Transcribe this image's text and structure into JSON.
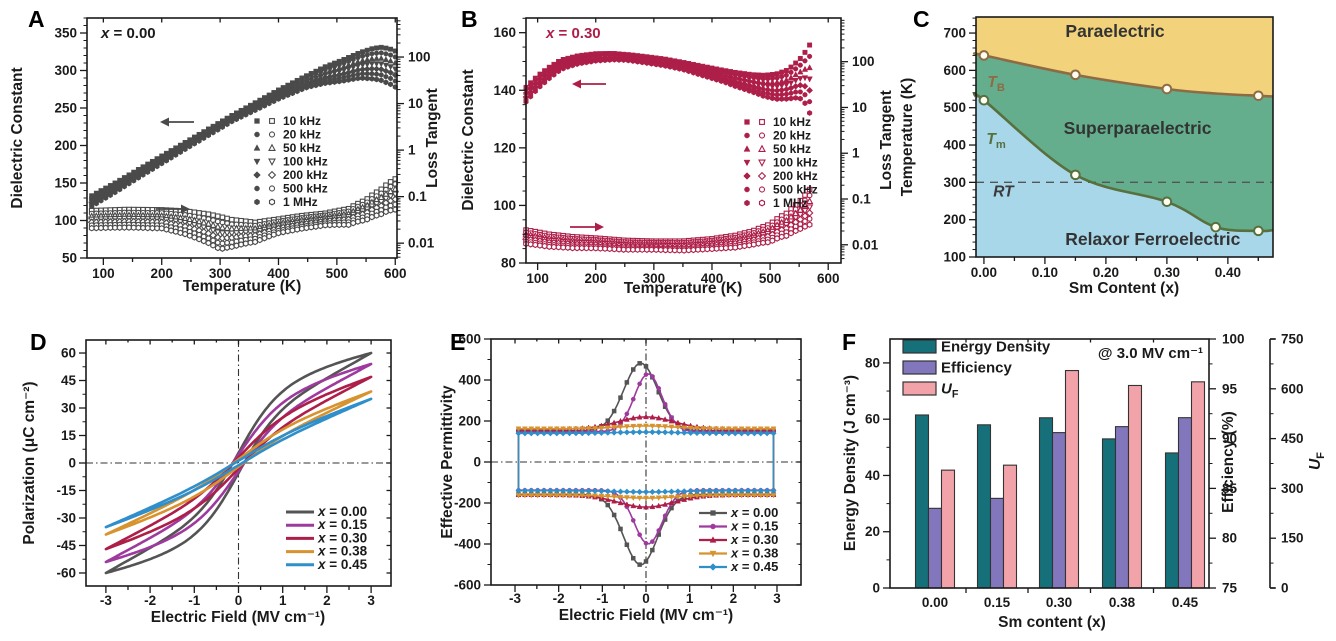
{
  "figure": {
    "panel_order": [
      "A",
      "B",
      "C",
      "D",
      "E",
      "F"
    ]
  },
  "chart_data": {
    "A": {
      "letter": "A",
      "type": "scatter",
      "title": "x = 0.00",
      "xlabel": "Temperature (K)",
      "ylabel_left": "Dielectric Constant",
      "ylabel_right": "Loss Tangent",
      "xlim": [
        72,
        603
      ],
      "xticks": [
        100,
        200,
        300,
        400,
        500,
        600
      ],
      "ylim_left": [
        50,
        370
      ],
      "yticks_left": [
        50,
        100,
        150,
        200,
        250,
        300,
        350
      ],
      "ylim_right_log": [
        0.0048,
        690
      ],
      "yticks_right": [
        0.01,
        0.1,
        1,
        10,
        100
      ],
      "temperature_range": [
        80,
        600
      ],
      "legend": [
        "10 kHz",
        "20 kHz",
        "50 kHz",
        "100 kHz",
        "200 kHz",
        "500 kHz",
        "1 MHz"
      ],
      "markers": [
        "square",
        "circle",
        "triangle-up",
        "triangle-down",
        "diamond",
        "circle",
        "hexagon"
      ],
      "color": "#4a4a4a",
      "title_color": "#1a1a1a",
      "dielectric_top_curve": [
        [
          80,
          133
        ],
        [
          120,
          150
        ],
        [
          160,
          168
        ],
        [
          200,
          186
        ],
        [
          240,
          204
        ],
        [
          280,
          222
        ],
        [
          320,
          240
        ],
        [
          360,
          257
        ],
        [
          400,
          274
        ],
        [
          440,
          290
        ],
        [
          480,
          305
        ],
        [
          510,
          314
        ],
        [
          540,
          324
        ],
        [
          560,
          329
        ],
        [
          575,
          331
        ],
        [
          590,
          329
        ],
        [
          600,
          326
        ]
      ],
      "dielectric_freq_spread": [
        [
          80,
          14
        ],
        [
          160,
          11
        ],
        [
          240,
          9
        ],
        [
          320,
          8
        ],
        [
          400,
          12
        ],
        [
          450,
          16
        ],
        [
          480,
          22
        ],
        [
          510,
          28
        ],
        [
          540,
          34
        ],
        [
          560,
          40
        ],
        [
          580,
          45
        ],
        [
          600,
          48
        ]
      ],
      "loss_top_curve": [
        [
          80,
          0.05
        ],
        [
          140,
          0.053
        ],
        [
          200,
          0.052
        ],
        [
          240,
          0.049
        ],
        [
          280,
          0.042
        ],
        [
          320,
          0.032
        ],
        [
          360,
          0.028
        ],
        [
          400,
          0.033
        ],
        [
          440,
          0.039
        ],
        [
          480,
          0.044
        ],
        [
          520,
          0.055
        ],
        [
          550,
          0.085
        ],
        [
          575,
          0.14
        ],
        [
          600,
          0.24
        ]
      ],
      "loss_freq_ratio": [
        [
          80,
          0.42
        ],
        [
          200,
          0.4
        ],
        [
          300,
          0.2
        ],
        [
          400,
          0.5
        ],
        [
          480,
          0.55
        ],
        [
          540,
          0.4
        ],
        [
          600,
          0.22
        ]
      ]
    },
    "B": {
      "letter": "B",
      "type": "scatter",
      "title": "x = 0.30",
      "xlabel": "Temperature (K)",
      "ylabel_left": "Dielectric Constant",
      "ylabel_right": "Loss Tangent",
      "xlim": [
        80,
        622
      ],
      "xticks": [
        100,
        200,
        300,
        400,
        500,
        600
      ],
      "ylim_left": [
        80,
        165.1
      ],
      "yticks_left": [
        80,
        100,
        120,
        140,
        160
      ],
      "ylim_right_log": [
        0.004,
        900
      ],
      "yticks_right": [
        0.01,
        0.1,
        1,
        10,
        100
      ],
      "temperature_range": [
        80,
        575
      ],
      "legend": [
        "10 kHz",
        "20 kHz",
        "50 kHz",
        "100 kHz",
        "200 kHz",
        "500 kHz",
        "1 MHz"
      ],
      "markers": [
        "square",
        "circle",
        "triangle-up",
        "triangle-down",
        "diamond",
        "circle",
        "hexagon"
      ],
      "color": "#ad1e48",
      "title_color": "#ad1e48",
      "dielectric_top_curve": [
        [
          80,
          141
        ],
        [
          100,
          145
        ],
        [
          120,
          148
        ],
        [
          140,
          150.5
        ],
        [
          170,
          152
        ],
        [
          200,
          152.7
        ],
        [
          230,
          152.8
        ],
        [
          260,
          152.3
        ],
        [
          290,
          151.6
        ],
        [
          320,
          150.8
        ],
        [
          350,
          149.7
        ],
        [
          380,
          148.5
        ],
        [
          410,
          147.3
        ],
        [
          440,
          146.2
        ],
        [
          470,
          145.4
        ],
        [
          490,
          145.2
        ],
        [
          510,
          145.6
        ],
        [
          530,
          147
        ],
        [
          550,
          150.5
        ],
        [
          565,
          154.5
        ],
        [
          575,
          158.5
        ]
      ],
      "dielectric_freq_spread": [
        [
          80,
          5
        ],
        [
          150,
          3
        ],
        [
          250,
          2
        ],
        [
          350,
          2.5
        ],
        [
          420,
          4
        ],
        [
          470,
          6
        ],
        [
          500,
          8
        ],
        [
          530,
          10
        ],
        [
          550,
          13
        ],
        [
          565,
          20
        ],
        [
          575,
          32
        ]
      ],
      "loss_top_curve": [
        [
          80,
          0.021
        ],
        [
          120,
          0.017
        ],
        [
          160,
          0.015
        ],
        [
          200,
          0.014
        ],
        [
          250,
          0.0125
        ],
        [
          300,
          0.012
        ],
        [
          350,
          0.012
        ],
        [
          400,
          0.0135
        ],
        [
          440,
          0.016
        ],
        [
          470,
          0.02
        ],
        [
          500,
          0.028
        ],
        [
          530,
          0.05
        ],
        [
          550,
          0.085
        ],
        [
          565,
          0.14
        ],
        [
          575,
          0.21
        ]
      ],
      "loss_freq_ratio": [
        [
          80,
          0.5
        ],
        [
          200,
          0.6
        ],
        [
          300,
          0.65
        ],
        [
          400,
          0.6
        ],
        [
          470,
          0.5
        ],
        [
          520,
          0.35
        ],
        [
          550,
          0.25
        ],
        [
          575,
          0.14
        ]
      ]
    },
    "C": {
      "letter": "C",
      "type": "phase-diagram",
      "xlabel": "Sm Content (x)",
      "ylabel": "Temperature (K)",
      "xlim": [
        -0.013,
        0.474
      ],
      "xticks": [
        0,
        0.1,
        0.2,
        0.3,
        0.4
      ],
      "ylim": [
        100,
        743
      ],
      "yticks": [
        100,
        200,
        300,
        400,
        500,
        600,
        700
      ],
      "regions": [
        {
          "name": "Paraelectric",
          "color": "#f2d37b",
          "label_pos": [
            0.215,
            690
          ]
        },
        {
          "name": "Superparaelectric",
          "color": "#64ae8d",
          "label_pos": [
            0.252,
            430
          ]
        },
        {
          "name": "Relaxor Ferroelectric",
          "color": "#a7d7e8",
          "label_pos": [
            0.277,
            132
          ]
        }
      ],
      "TB": {
        "label": "T_B",
        "color": "#8f6b44",
        "label_pos": [
          0.02,
          555
        ],
        "points": [
          [
            0,
            640
          ],
          [
            0.15,
            588
          ],
          [
            0.3,
            550
          ],
          [
            0.45,
            532
          ]
        ],
        "curve_ext": [
          [
            -0.013,
            644
          ],
          [
            0,
            640
          ],
          [
            0.15,
            588
          ],
          [
            0.3,
            550
          ],
          [
            0.38,
            538
          ],
          [
            0.45,
            532
          ],
          [
            0.474,
            530
          ]
        ]
      },
      "Tm": {
        "label": "T_m",
        "color": "#57703d",
        "label_pos": [
          0.02,
          403
        ],
        "points": [
          [
            0,
            520
          ],
          [
            0.15,
            320
          ],
          [
            0.3,
            248
          ],
          [
            0.38,
            180
          ],
          [
            0.45,
            170
          ]
        ],
        "curve_ext": [
          [
            -0.013,
            528
          ],
          [
            0,
            520
          ],
          [
            0.15,
            320
          ],
          [
            0.3,
            248
          ],
          [
            0.38,
            180
          ],
          [
            0.45,
            170
          ],
          [
            0.474,
            172
          ]
        ]
      },
      "RT": {
        "label": "RT",
        "temperature": 300,
        "label_pos": [
          0.032,
          262
        ]
      },
      "marker_fill": "#fffdf2"
    },
    "D": {
      "letter": "D",
      "type": "line",
      "xlabel": "Electric Field (MV cm⁻¹)",
      "ylabel": "Polarization (μC cm⁻²)",
      "xlim": [
        -3.45,
        3.45
      ],
      "xticks": [
        -3,
        -2,
        -1,
        0,
        1,
        2,
        3
      ],
      "ylim": [
        -67.1,
        67.1
      ],
      "yticks": [
        -60,
        -45,
        -30,
        -15,
        0,
        15,
        30,
        45,
        60
      ],
      "field_max": 3.0,
      "series": [
        {
          "name": "x = 0.00",
          "color": "#545454",
          "pmax": 60,
          "sat": 30,
          "e0": 0.9,
          "slope": 10.03,
          "loop_halfwidth": 5.5
        },
        {
          "name": "x = 0.15",
          "color": "#9e3a9e",
          "pmax": 54,
          "sat": 24,
          "e0": 0.95,
          "slope": 10.03,
          "loop_halfwidth": 4.5
        },
        {
          "name": "x = 0.30",
          "color": "#ad1e48",
          "pmax": 47,
          "sat": 15,
          "e0": 1.0,
          "slope": 10.69,
          "loop_halfwidth": 3.0
        },
        {
          "name": "x = 0.38",
          "color": "#d6932f",
          "pmax": 39,
          "sat": 9,
          "e0": 1.1,
          "slope": 10.02,
          "loop_halfwidth": 2.0
        },
        {
          "name": "x = 0.45",
          "color": "#2f8fcb",
          "pmax": 35,
          "sat": 6,
          "e0": 1.2,
          "slope": 9.69,
          "loop_halfwidth": 1.2
        }
      ]
    },
    "E": {
      "letter": "E",
      "type": "line",
      "xlabel": "Electric Field (MV cm⁻¹)",
      "ylabel": "Effective Permittivity",
      "xlim": [
        -3.55,
        3.55
      ],
      "xticks": [
        -3,
        -2,
        -1,
        0,
        1,
        2,
        3
      ],
      "ylim": [
        -600,
        600
      ],
      "yticks": [
        -600,
        -400,
        -200,
        0,
        200,
        400,
        600
      ],
      "closure_field": 2.92,
      "series": [
        {
          "name": "x = 0.00",
          "color": "#545454",
          "marker": "square",
          "base": 152,
          "peak": 330,
          "width": 0.55,
          "offset": -0.12,
          "lower_scale": 1.04
        },
        {
          "name": "x = 0.15",
          "color": "#9e3a9e",
          "marker": "circle",
          "base": 148,
          "peak": 282,
          "width": 0.45,
          "offset": 0.05,
          "lower_scale": 0.93
        },
        {
          "name": "x = 0.30",
          "color": "#ad1e48",
          "marker": "triangle-up",
          "base": 160,
          "peak": 60,
          "width": 0.9,
          "offset": 0,
          "lower_scale": 1.0
        },
        {
          "name": "x = 0.38",
          "color": "#d6932f",
          "marker": "triangle-down",
          "base": 162,
          "peak": 14,
          "width": 0.9,
          "offset": 0,
          "lower_scale": 1.0
        },
        {
          "name": "x = 0.45",
          "color": "#2f8fcb",
          "marker": "diamond",
          "base": 140,
          "peak": 6,
          "width": 1.0,
          "offset": 0,
          "lower_scale": 1.0
        }
      ]
    },
    "F": {
      "letter": "F",
      "type": "bar",
      "categories": [
        "0.00",
        "0.15",
        "0.30",
        "0.38",
        "0.45"
      ],
      "xlabel": "Sm content (x)",
      "annotation": "@ 3.0 MV cm⁻¹",
      "ylabel_left": "Energy Density (J cm⁻³)",
      "ylim_left": [
        0,
        88.5
      ],
      "yticks_left": [
        0,
        20,
        40,
        60,
        80
      ],
      "ylabel_right1": "Efficiency (%)",
      "ylim_right1": [
        75,
        100
      ],
      "yticks_right1": [
        75,
        80,
        85,
        90,
        95,
        100
      ],
      "ylabel_right2": "U_F",
      "ylim_right2": [
        0,
        750
      ],
      "yticks_right2": [
        0,
        150,
        300,
        450,
        600,
        750
      ],
      "series": [
        {
          "name": "Energy Density",
          "color": "#15707a",
          "axis": "left",
          "values": [
            61.5,
            58,
            60.5,
            53,
            48
          ]
        },
        {
          "name": "Efficiency",
          "color": "#8277bc",
          "axis": "right1",
          "values": [
            83,
            84,
            90.6,
            91.2,
            92.1
          ]
        },
        {
          "name": "U_F",
          "color": "#f2a3aa",
          "axis": "right2",
          "values": [
            355,
            370,
            655,
            610,
            621
          ]
        }
      ]
    }
  }
}
